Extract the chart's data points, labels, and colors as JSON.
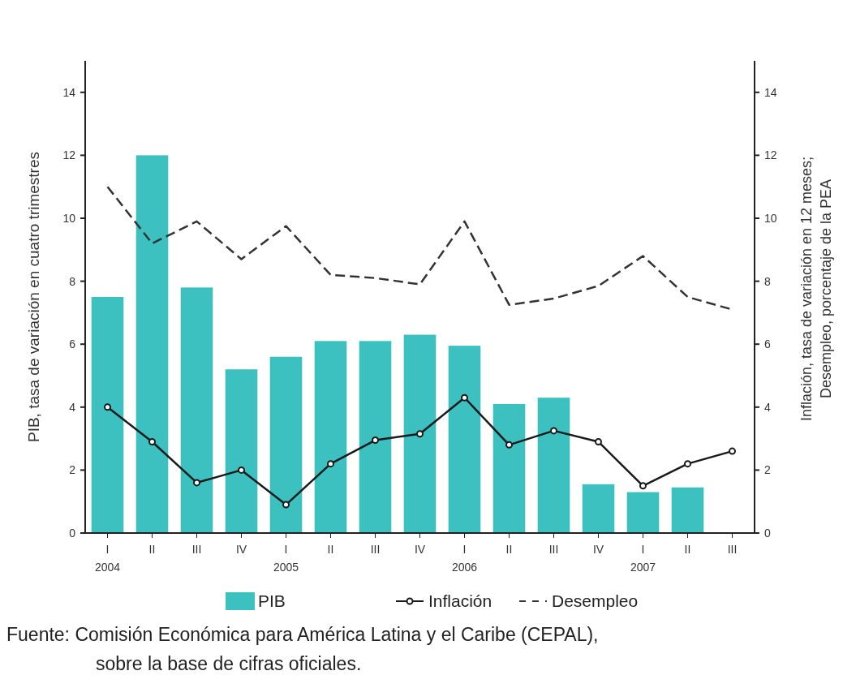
{
  "chart_data": {
    "type": "bar",
    "categories": [
      "I\n2004",
      "II",
      "III",
      "IV",
      "I\n2005",
      "II",
      "III",
      "IV",
      "I\n2006",
      "II",
      "III",
      "IV",
      "I\n2007",
      "II",
      "III"
    ],
    "series": [
      {
        "name": "PIB",
        "color": "#3cc0c0",
        "values": [
          7.5,
          12.0,
          7.8,
          5.2,
          5.6,
          6.1,
          6.1,
          6.3,
          5.95,
          4.1,
          4.3,
          1.55,
          1.3,
          1.45,
          null
        ]
      },
      {
        "name": "Inflación",
        "type": "line",
        "color": "#1a1a1a",
        "marker": "circle",
        "line_style": "solid",
        "values": [
          4.0,
          2.9,
          1.6,
          2.0,
          0.9,
          2.2,
          2.95,
          3.15,
          4.3,
          2.8,
          3.25,
          2.9,
          1.5,
          2.2,
          2.6
        ]
      },
      {
        "name": "Desempleo",
        "type": "line",
        "color": "#333333",
        "marker": "none",
        "line_style": "dashed",
        "values": [
          11.0,
          9.2,
          9.9,
          8.7,
          9.75,
          8.2,
          8.1,
          7.9,
          9.9,
          7.25,
          7.45,
          7.85,
          8.8,
          7.5,
          7.1
        ]
      }
    ],
    "ylabel": "PIB, tasa de variación en cuatro trimestres",
    "y2label": "Inflación, tasa de variación en 12 meses;\nDesempleo, porcentaje de la PEA",
    "ylim": [
      0,
      15
    ],
    "yticks": [
      0,
      2,
      4,
      6,
      8,
      10,
      12,
      14
    ],
    "y2lim": [
      0,
      15
    ],
    "y2ticks": [
      0,
      2,
      4,
      6,
      8,
      10,
      12,
      14
    ],
    "grid": false,
    "legend": "bottom",
    "annotations": [
      "Fuente: Comisión Económica para América Latina y el Caribe (CEPAL),\nsobre la base de cifras oficiales."
    ]
  }
}
